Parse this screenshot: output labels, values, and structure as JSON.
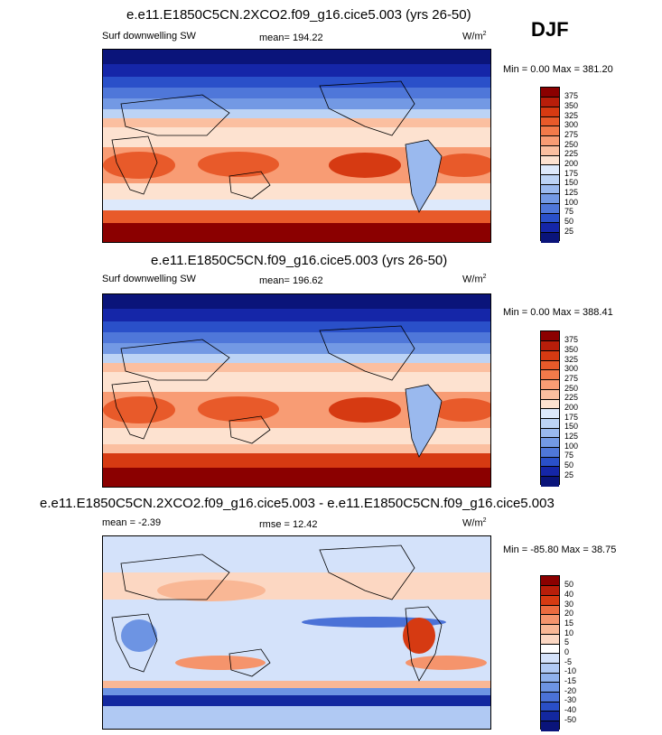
{
  "season": "DJF",
  "panels": [
    {
      "title": "e.e11.E1850C5CN.2XCO2.f09_g16.cice5.003 (yrs 26-50)",
      "left_label": "Surf downwelling SW",
      "center_label": "mean= 194.22",
      "units": "W/m",
      "units_sup": "2",
      "minmax": "Min =   0.00 Max = 381.20",
      "colorbar_labels": [
        "375",
        "350",
        "325",
        "300",
        "275",
        "250",
        "225",
        "200",
        "175",
        "150",
        "125",
        "100",
        "75",
        "50",
        "25"
      ]
    },
    {
      "title": "e.e11.E1850C5CN.f09_g16.cice5.003 (yrs 26-50)",
      "left_label": "Surf downwelling SW",
      "center_label": "mean= 196.62",
      "units": "W/m",
      "units_sup": "2",
      "minmax": "Min =   0.00 Max = 388.41",
      "colorbar_labels": [
        "375",
        "350",
        "325",
        "300",
        "275",
        "250",
        "225",
        "200",
        "175",
        "150",
        "125",
        "100",
        "75",
        "50",
        "25"
      ]
    },
    {
      "title": "e.e11.E1850C5CN.2XCO2.f09_g16.cice5.003 - e.e11.E1850C5CN.f09_g16.cice5.003",
      "left_label": "mean =  -2.39",
      "center_label": "rmse =  12.42",
      "units": "W/m",
      "units_sup": "2",
      "minmax": "Min = -85.80 Max =  38.75",
      "colorbar_labels": [
        "50",
        "40",
        "30",
        "20",
        "15",
        "10",
        "5",
        "0",
        "-5",
        "-10",
        "-15",
        "-20",
        "-30",
        "-40",
        "-50"
      ]
    }
  ],
  "colors": {
    "abs_scale": [
      "#8b0000",
      "#b81e0a",
      "#d63a12",
      "#e85a2a",
      "#f27a4a",
      "#f89c74",
      "#fbbfa0",
      "#fde2d0",
      "#dde9fb",
      "#bcd3f5",
      "#9ab9ee",
      "#7399e4",
      "#4f77d9",
      "#2a50c9",
      "#1526a8",
      "#0a147a"
    ],
    "diff_scale": [
      "#8b0000",
      "#b81e0a",
      "#d63a12",
      "#ec6b3f",
      "#f5946c",
      "#f9b795",
      "#fcd7c2",
      "#ffffff",
      "#d4e2fa",
      "#b0c9f3",
      "#8fb1ec",
      "#6d94e3",
      "#4b72d7",
      "#2a4fc6",
      "#13289f",
      "#0a147a"
    ]
  }
}
